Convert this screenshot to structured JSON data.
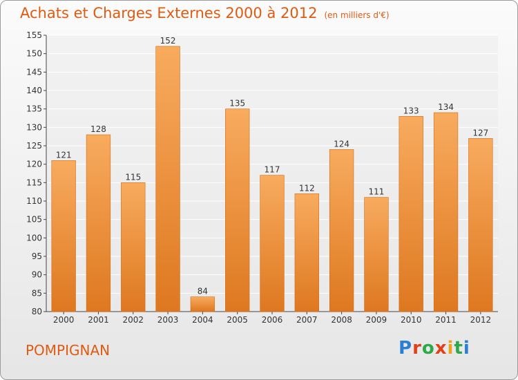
{
  "header": {
    "title": "Achats et Charges Externes 2000 à 2012",
    "unit": "(en milliers d'€)"
  },
  "footer": {
    "commune": "POMPIGNAN",
    "brand": "Proxiti"
  },
  "colors": {
    "accent": "#e05a10",
    "bar_light": "#f7a85a",
    "bar_dark": "#e07a20",
    "logo": [
      "#2a7fd4",
      "#e0401a",
      "#2fa84a",
      "#e0401a",
      "#f0a020",
      "#2fa84a",
      "#2a7fd4"
    ]
  },
  "chart_data": {
    "type": "bar",
    "categories": [
      "2000",
      "2001",
      "2002",
      "2003",
      "2004",
      "2005",
      "2006",
      "2007",
      "2008",
      "2009",
      "2010",
      "2011",
      "2012"
    ],
    "values": [
      121,
      128,
      115,
      152,
      84,
      135,
      117,
      112,
      124,
      111,
      133,
      134,
      127
    ],
    "data_labels": [
      "121",
      "128",
      "115",
      "152",
      "84",
      "135",
      "117",
      "112",
      "124",
      "111",
      "133",
      "134",
      "127"
    ],
    "title": "Achats et Charges Externes 2000 à 2012",
    "ylim": [
      80,
      155
    ],
    "yticks": [
      80,
      85,
      90,
      95,
      100,
      105,
      110,
      115,
      120,
      125,
      130,
      135,
      140,
      145,
      150,
      155
    ],
    "grid": true
  }
}
